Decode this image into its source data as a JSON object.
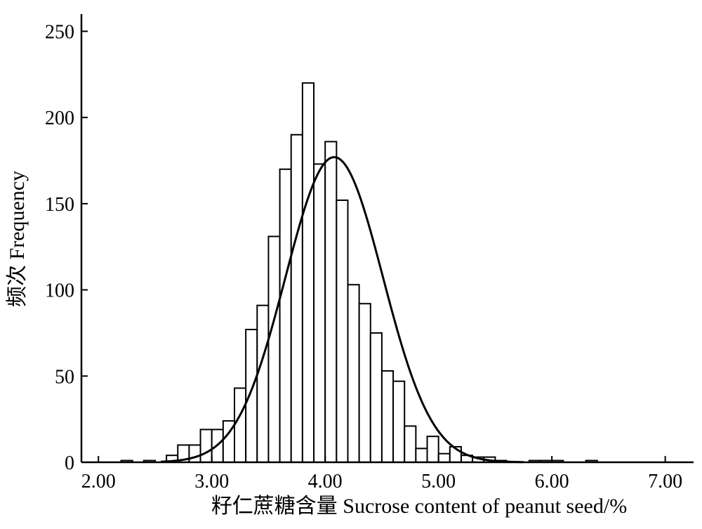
{
  "chart_data": {
    "type": "bar",
    "xlabel": "籽仁蔗糖含量  Sucrose content of peanut seed/%",
    "ylabel": "频次  Frequency",
    "xlim": [
      1.85,
      7.25
    ],
    "ylim": [
      0,
      260
    ],
    "xticks": [
      "2.00",
      "3.00",
      "4.00",
      "5.00",
      "6.00",
      "7.00"
    ],
    "xtick_values": [
      2.0,
      3.0,
      4.0,
      5.0,
      6.0,
      7.0
    ],
    "yticks": [
      "0",
      "50",
      "100",
      "150",
      "200",
      "250"
    ],
    "ytick_values": [
      0,
      50,
      100,
      150,
      200,
      250
    ],
    "bin_width": 0.1,
    "bins": [
      {
        "x": 2.25,
        "value": 1
      },
      {
        "x": 2.45,
        "value": 1
      },
      {
        "x": 2.65,
        "value": 4
      },
      {
        "x": 2.75,
        "value": 10
      },
      {
        "x": 2.85,
        "value": 10
      },
      {
        "x": 2.95,
        "value": 19
      },
      {
        "x": 3.05,
        "value": 19
      },
      {
        "x": 3.15,
        "value": 24
      },
      {
        "x": 3.25,
        "value": 43
      },
      {
        "x": 3.35,
        "value": 77
      },
      {
        "x": 3.45,
        "value": 91
      },
      {
        "x": 3.55,
        "value": 131
      },
      {
        "x": 3.65,
        "value": 170
      },
      {
        "x": 3.75,
        "value": 190
      },
      {
        "x": 3.85,
        "value": 220
      },
      {
        "x": 3.95,
        "value": 173
      },
      {
        "x": 4.05,
        "value": 186
      },
      {
        "x": 4.15,
        "value": 152
      },
      {
        "x": 4.25,
        "value": 103
      },
      {
        "x": 4.35,
        "value": 92
      },
      {
        "x": 4.45,
        "value": 75
      },
      {
        "x": 4.55,
        "value": 53
      },
      {
        "x": 4.65,
        "value": 47
      },
      {
        "x": 4.75,
        "value": 21
      },
      {
        "x": 4.85,
        "value": 8
      },
      {
        "x": 4.95,
        "value": 15
      },
      {
        "x": 5.05,
        "value": 5
      },
      {
        "x": 5.15,
        "value": 9
      },
      {
        "x": 5.25,
        "value": 4
      },
      {
        "x": 5.35,
        "value": 3
      },
      {
        "x": 5.45,
        "value": 3
      },
      {
        "x": 5.55,
        "value": 1
      },
      {
        "x": 5.85,
        "value": 1
      },
      {
        "x": 5.95,
        "value": 1
      },
      {
        "x": 6.05,
        "value": 1
      },
      {
        "x": 6.35,
        "value": 1
      }
    ],
    "fit_curve": {
      "type": "normal",
      "mean": 4.08,
      "peak": 177,
      "sd": 0.43
    },
    "grid": false,
    "legend": "none"
  }
}
